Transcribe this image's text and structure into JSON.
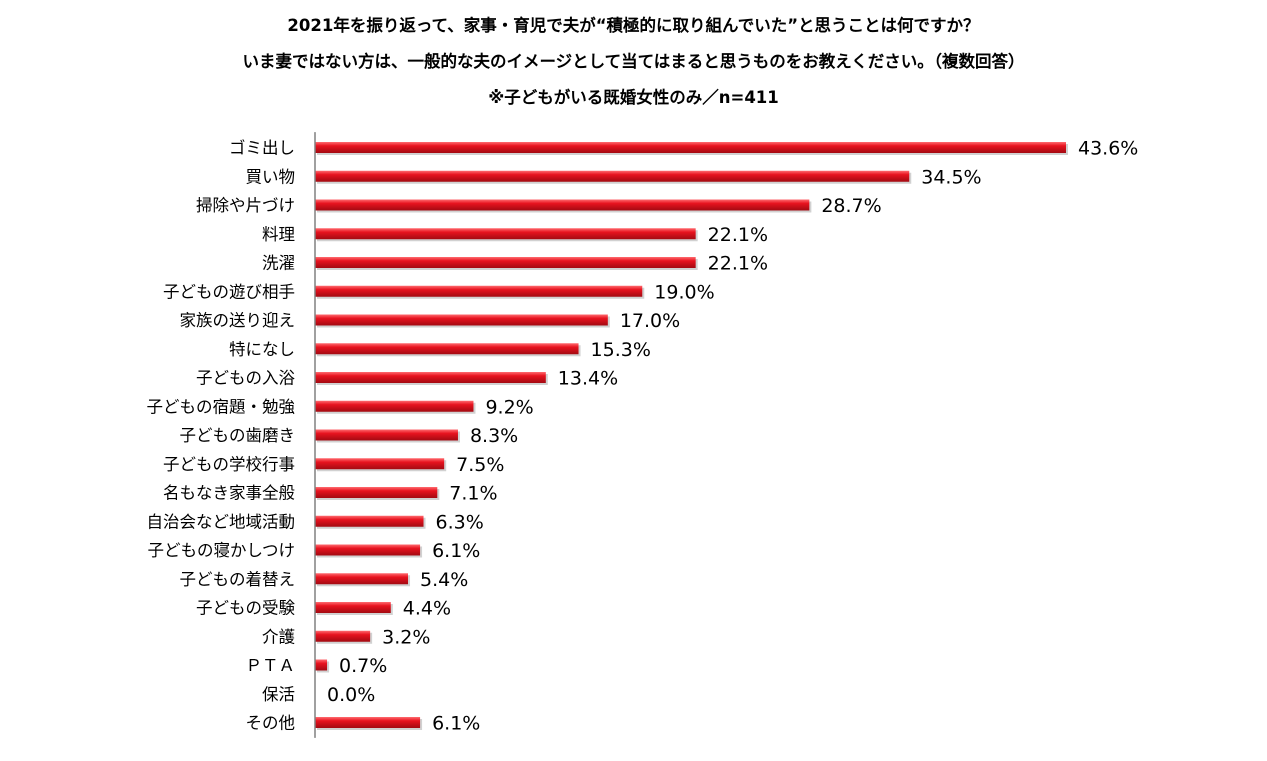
{
  "title_lines": [
    "2021年を振り返って、家事・育児で夫が“積極的に取り組んでいた”と思うことは何ですか？",
    "いま妻ではない方は、一般的な夫のイメージとして当てはまると思うものをお教えください。（複数回答）",
    "※子どもがいる既婚女性のみ／n=411"
  ],
  "colors": {
    "bar": "#e8131f",
    "bar_highlight": "#ff6b70",
    "bar_shadow": "#a30a12",
    "axis": "#808080"
  },
  "chart_data": {
    "type": "bar",
    "orientation": "horizontal",
    "categories": [
      "ゴミ出し",
      "買い物",
      "掃除や片づけ",
      "料理",
      "洗濯",
      "子どもの遊び相手",
      "家族の送り迎え",
      "特になし",
      "子どもの入浴",
      "子どもの宿題・勉強",
      "子どもの歯磨き",
      "子どもの学校行事",
      "名もなき家事全般",
      "自治会など地域活動",
      "子どもの寝かしつけ",
      "子どもの着替え",
      "子どもの受験",
      "介護",
      "ＰＴＡ",
      "保活",
      "その他"
    ],
    "values": [
      43.6,
      34.5,
      28.7,
      22.1,
      22.1,
      19.0,
      17.0,
      15.3,
      13.4,
      9.2,
      8.3,
      7.5,
      7.1,
      6.3,
      6.1,
      5.4,
      4.4,
      3.2,
      0.7,
      0.0,
      6.1
    ],
    "value_labels": [
      "43.6%",
      "34.5%",
      "28.7%",
      "22.1%",
      "22.1%",
      "19.0%",
      "17.0%",
      "15.3%",
      "13.4%",
      "9.2%",
      "8.3%",
      "7.5%",
      "7.1%",
      "6.3%",
      "6.1%",
      "5.4%",
      "4.4%",
      "3.2%",
      "0.7%",
      "0.0%",
      "6.1%"
    ],
    "xlim": [
      0,
      43.6
    ],
    "grid": false,
    "legend": "none"
  }
}
